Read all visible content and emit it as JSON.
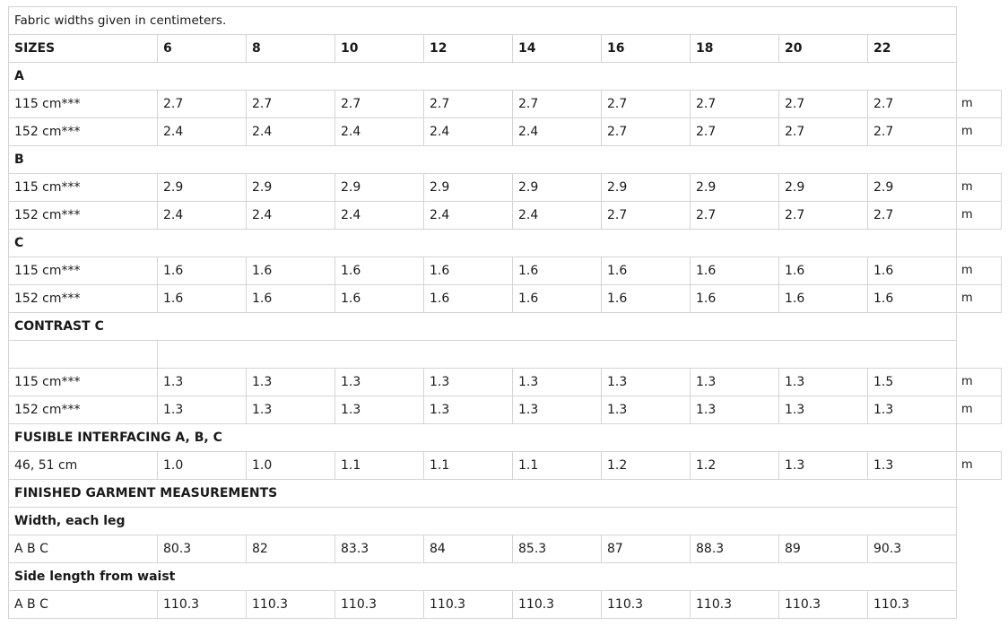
{
  "note": "Fabric widths given in centimeters.",
  "header": {
    "label": "SIZES",
    "sizes": [
      "6",
      "8",
      "10",
      "12",
      "14",
      "16",
      "18",
      "20",
      "22"
    ]
  },
  "sections": [
    {
      "title": "A",
      "rows": [
        {
          "label": "115 cm***",
          "values": [
            "2.7",
            "2.7",
            "2.7",
            "2.7",
            "2.7",
            "2.7",
            "2.7",
            "2.7",
            "2.7"
          ],
          "unit": "m"
        },
        {
          "label": "152 cm***",
          "values": [
            "2.4",
            "2.4",
            "2.4",
            "2.4",
            "2.4",
            "2.7",
            "2.7",
            "2.7",
            "2.7"
          ],
          "unit": "m"
        }
      ]
    },
    {
      "title": "B",
      "rows": [
        {
          "label": "115 cm***",
          "values": [
            "2.9",
            "2.9",
            "2.9",
            "2.9",
            "2.9",
            "2.9",
            "2.9",
            "2.9",
            "2.9"
          ],
          "unit": "m"
        },
        {
          "label": "152 cm***",
          "values": [
            "2.4",
            "2.4",
            "2.4",
            "2.4",
            "2.4",
            "2.7",
            "2.7",
            "2.7",
            "2.7"
          ],
          "unit": "m"
        }
      ]
    },
    {
      "title": "C",
      "rows": [
        {
          "label": "115 cm***",
          "values": [
            "1.6",
            "1.6",
            "1.6",
            "1.6",
            "1.6",
            "1.6",
            "1.6",
            "1.6",
            "1.6"
          ],
          "unit": "m"
        },
        {
          "label": "152 cm***",
          "values": [
            "1.6",
            "1.6",
            "1.6",
            "1.6",
            "1.6",
            "1.6",
            "1.6",
            "1.6",
            "1.6"
          ],
          "unit": "m"
        }
      ]
    },
    {
      "title": "CONTRAST C",
      "spacer": true,
      "rows": [
        {
          "label": "115 cm***",
          "values": [
            "1.3",
            "1.3",
            "1.3",
            "1.3",
            "1.3",
            "1.3",
            "1.3",
            "1.3",
            "1.5"
          ],
          "unit": "m"
        },
        {
          "label": "152 cm***",
          "values": [
            "1.3",
            "1.3",
            "1.3",
            "1.3",
            "1.3",
            "1.3",
            "1.3",
            "1.3",
            "1.3"
          ],
          "unit": "m"
        }
      ]
    },
    {
      "title": "FUSIBLE INTERFACING A, B, C",
      "rows": [
        {
          "label": "46, 51 cm",
          "values": [
            "1.0",
            "1.0",
            "1.1",
            "1.1",
            "1.1",
            "1.2",
            "1.2",
            "1.3",
            "1.3"
          ],
          "unit": "m"
        }
      ]
    },
    {
      "title": "FINISHED GARMENT MEASUREMENTS",
      "rows": []
    },
    {
      "title": "Width, each leg",
      "rows": [
        {
          "label": "A B C",
          "values": [
            "80.3",
            "82",
            "83.3",
            "84",
            "85.3",
            "87",
            "88.3",
            "89",
            "90.3"
          ],
          "unit": ""
        }
      ]
    },
    {
      "title": "Side length from waist",
      "rows": [
        {
          "label": "A B C",
          "values": [
            "110.3",
            "110.3",
            "110.3",
            "110.3",
            "110.3",
            "110.3",
            "110.3",
            "110.3",
            "110.3"
          ],
          "unit": ""
        }
      ]
    }
  ]
}
